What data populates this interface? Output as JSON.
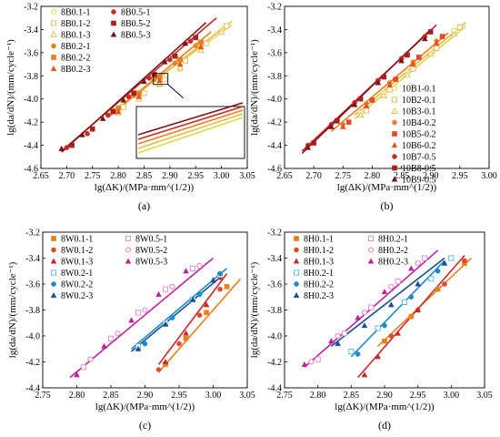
{
  "chart_data": [
    {
      "type": "scatter",
      "panel_label": "(a)",
      "xlabel": "lg(ΔK)/(MPa·mm^(1/2))",
      "ylabel": "lg(da/dN)/(mm/cycle⁻¹)",
      "xlim": [
        2.65,
        3.05
      ],
      "ylim": [
        -4.6,
        -3.2
      ],
      "xticks": [
        "2.65",
        "2.70",
        "2.75",
        "2.80",
        "2.85",
        "2.90",
        "2.95",
        "3.00",
        "3.05"
      ],
      "yticks": [
        "-3.2",
        "-3.4",
        "-3.6",
        "-3.8",
        "-4.0",
        "-4.2",
        "-4.4",
        "-4.6"
      ],
      "legend_columns": 2,
      "series": [
        {
          "name": "8B0.1-1",
          "color": "#d9d94a",
          "marker": "circle",
          "fill": "open",
          "x": [
            2.8,
            2.84,
            2.88,
            2.92,
            2.96,
            3.0
          ],
          "y": [
            -4.09,
            -3.99,
            -3.88,
            -3.74,
            -3.56,
            -3.4
          ]
        },
        {
          "name": "8B0.1-2",
          "color": "#e6b84a",
          "marker": "square",
          "fill": "open",
          "x": [
            2.81,
            2.85,
            2.89,
            2.93,
            2.97,
            3.01
          ],
          "y": [
            -4.07,
            -3.95,
            -3.83,
            -3.67,
            -3.52,
            -3.37
          ]
        },
        {
          "name": "8B0.1-3",
          "color": "#e6b84a",
          "marker": "triangle",
          "fill": "open",
          "x": [
            2.8,
            2.84,
            2.88,
            2.92,
            2.96,
            3.0
          ],
          "y": [
            -4.12,
            -4.0,
            -3.87,
            -3.73,
            -3.58,
            -3.42
          ]
        },
        {
          "name": "8B0.2-1",
          "color": "#e8801f",
          "marker": "circle",
          "fill": "solid",
          "x": [
            2.79,
            2.83,
            2.87,
            2.91,
            2.95
          ],
          "y": [
            -4.1,
            -3.97,
            -3.83,
            -3.69,
            -3.54
          ]
        },
        {
          "name": "8B0.2-2",
          "color": "#e8801f",
          "marker": "square",
          "fill": "solid",
          "x": [
            2.8,
            2.84,
            2.88,
            2.92,
            2.96
          ],
          "y": [
            -4.08,
            -3.95,
            -3.81,
            -3.66,
            -3.51
          ]
        },
        {
          "name": "8B0.2-3",
          "color": "#e8501f",
          "marker": "triangle",
          "fill": "solid",
          "x": [
            2.8,
            2.84,
            2.88,
            2.92,
            2.96
          ],
          "y": [
            -4.11,
            -3.98,
            -3.84,
            -3.7,
            -3.55
          ]
        },
        {
          "name": "8B0.5-1",
          "color": "#c8282a",
          "marker": "circle",
          "fill": "solid",
          "x": [
            2.7,
            2.74,
            2.78,
            2.82,
            2.86,
            2.9,
            2.94
          ],
          "y": [
            -4.42,
            -4.3,
            -4.14,
            -3.98,
            -3.82,
            -3.66,
            -3.5
          ]
        },
        {
          "name": "8B0.5-2",
          "color": "#a81e22",
          "marker": "square",
          "fill": "solid",
          "x": [
            2.71,
            2.75,
            2.79,
            2.83,
            2.87,
            2.91,
            2.95
          ],
          "y": [
            -4.4,
            -4.26,
            -4.11,
            -3.95,
            -3.79,
            -3.63,
            -3.47
          ]
        },
        {
          "name": "8B0.5-3",
          "color": "#7a1216",
          "marker": "triangle",
          "fill": "solid",
          "x": [
            2.69,
            2.73,
            2.77,
            2.81,
            2.85,
            2.89,
            2.93
          ],
          "y": [
            -4.43,
            -4.31,
            -4.17,
            -4.01,
            -3.85,
            -3.68,
            -3.52
          ]
        }
      ],
      "fit_lines": [
        {
          "color": "#d9d94a",
          "x": [
            2.78,
            3.02
          ],
          "y": [
            -4.13,
            -3.36
          ]
        },
        {
          "color": "#e6b84a",
          "x": [
            2.78,
            3.02
          ],
          "y": [
            -4.15,
            -3.33
          ]
        },
        {
          "color": "#e8801f",
          "x": [
            2.78,
            2.98
          ],
          "y": [
            -4.16,
            -3.42
          ]
        },
        {
          "color": "#c8282a",
          "x": [
            2.69,
            2.99
          ],
          "y": [
            -4.45,
            -3.3
          ]
        },
        {
          "color": "#7a1216",
          "x": [
            2.69,
            2.97
          ],
          "y": [
            -4.46,
            -3.34
          ]
        }
      ],
      "inset": true
    },
    {
      "type": "scatter",
      "panel_label": "(b)",
      "xlabel": "lg(ΔK)/(MPa·mm^(1/2))",
      "ylabel": "lg(da/dN)/(mm/cycle⁻¹)",
      "xlim": [
        2.65,
        3.0
      ],
      "ylim": [
        -4.6,
        -3.2
      ],
      "xticks": [
        "2.65",
        "2.70",
        "2.75",
        "2.80",
        "2.85",
        "2.90",
        "2.95",
        "3.00"
      ],
      "yticks": [
        "-3.2",
        "-3.4",
        "-3.6",
        "-3.8",
        "-4.0",
        "-4.2",
        "-4.4",
        "-4.6"
      ],
      "legend_columns": 1,
      "series": [
        {
          "name": "10B1-0.1",
          "color": "#d9d94a",
          "marker": "circle",
          "fill": "open",
          "x": [
            2.78,
            2.82,
            2.86,
            2.9,
            2.94
          ],
          "y": [
            -4.12,
            -3.95,
            -3.77,
            -3.59,
            -3.41
          ]
        },
        {
          "name": "10B2-0.1",
          "color": "#e6b84a",
          "marker": "square",
          "fill": "open",
          "x": [
            2.79,
            2.83,
            2.87,
            2.91,
            2.95
          ],
          "y": [
            -4.1,
            -3.92,
            -3.74,
            -3.56,
            -3.38
          ]
        },
        {
          "name": "10B3-0.1",
          "color": "#e6b84a",
          "marker": "triangle",
          "fill": "open",
          "x": [
            2.78,
            2.82,
            2.86,
            2.9,
            2.94
          ],
          "y": [
            -4.14,
            -3.97,
            -3.79,
            -3.61,
            -3.44
          ]
        },
        {
          "name": "10B4-0.2",
          "color": "#e8801f",
          "marker": "circle",
          "fill": "solid",
          "x": [
            2.75,
            2.79,
            2.83,
            2.87,
            2.91
          ],
          "y": [
            -4.22,
            -4.04,
            -3.86,
            -3.68,
            -3.5
          ]
        },
        {
          "name": "10B5-0.2",
          "color": "#e04a2a",
          "marker": "square",
          "fill": "solid",
          "x": [
            2.76,
            2.8,
            2.84,
            2.88,
            2.92
          ],
          "y": [
            -4.2,
            -4.01,
            -3.83,
            -3.64,
            -3.46
          ]
        },
        {
          "name": "10B6-0.2",
          "color": "#e8501f",
          "marker": "triangle",
          "fill": "solid",
          "x": [
            2.75,
            2.79,
            2.83,
            2.87,
            2.91
          ],
          "y": [
            -4.24,
            -4.06,
            -3.88,
            -3.7,
            -3.52
          ]
        },
        {
          "name": "10B7-0.5",
          "color": "#c8282a",
          "marker": "circle",
          "fill": "solid",
          "x": [
            2.69,
            2.73,
            2.77,
            2.81,
            2.85,
            2.89
          ],
          "y": [
            -4.4,
            -4.22,
            -4.03,
            -3.84,
            -3.65,
            -3.46
          ]
        },
        {
          "name": "10B8-0.5",
          "color": "#a81e22",
          "marker": "square",
          "fill": "solid",
          "x": [
            2.7,
            2.74,
            2.78,
            2.82,
            2.86,
            2.9
          ],
          "y": [
            -4.38,
            -4.19,
            -4.0,
            -3.81,
            -3.62,
            -3.42
          ]
        },
        {
          "name": "10B9-0.5",
          "color": "#7a1216",
          "marker": "triangle",
          "fill": "solid",
          "x": [
            2.69,
            2.73,
            2.77,
            2.81,
            2.85,
            2.89
          ],
          "y": [
            -4.42,
            -4.24,
            -4.05,
            -3.86,
            -3.67,
            -3.48
          ]
        }
      ],
      "fit_lines": [
        {
          "color": "#d9d94a",
          "x": [
            2.77,
            2.96
          ],
          "y": [
            -4.17,
            -3.37
          ]
        },
        {
          "color": "#e6b84a",
          "x": [
            2.77,
            2.96
          ],
          "y": [
            -4.14,
            -3.34
          ]
        },
        {
          "color": "#e8801f",
          "x": [
            2.73,
            2.93
          ],
          "y": [
            -4.28,
            -3.43
          ]
        },
        {
          "color": "#c8282a",
          "x": [
            2.68,
            2.91
          ],
          "y": [
            -4.45,
            -3.36
          ]
        },
        {
          "color": "#7a1216",
          "x": [
            2.68,
            2.9
          ],
          "y": [
            -4.47,
            -3.4
          ]
        }
      ]
    },
    {
      "type": "scatter",
      "panel_label": "(c)",
      "xlabel": "lg(ΔK)/(MPa·mm^(1/2))",
      "ylabel": "lg(da/dN)/(mm/cycle⁻¹)",
      "xlim": [
        2.75,
        3.05
      ],
      "ylim": [
        -4.4,
        -3.2
      ],
      "xticks": [
        "2.75",
        "2.80",
        "2.85",
        "2.90",
        "2.95",
        "3.00",
        "3.05"
      ],
      "yticks": [
        "-3.2",
        "-3.4",
        "-3.6",
        "-3.8",
        "-4.0",
        "-4.2",
        "-4.4"
      ],
      "legend_columns": 2,
      "series": [
        {
          "name": "8W0.1-1",
          "color": "#e8801f",
          "marker": "square",
          "fill": "solid",
          "x": [
            2.93,
            2.96,
            2.99,
            3.02
          ],
          "y": [
            -4.22,
            -4.02,
            -3.82,
            -3.62
          ]
        },
        {
          "name": "8W0.1-2",
          "color": "#e04a2a",
          "marker": "circle",
          "fill": "solid",
          "x": [
            2.92,
            2.95,
            2.98,
            3.01
          ],
          "y": [
            -4.26,
            -4.06,
            -3.84,
            -3.64
          ]
        },
        {
          "name": "8W0.1-3",
          "color": "#c8282a",
          "marker": "triangle",
          "fill": "solid",
          "x": [
            2.93,
            2.96,
            2.99,
            3.01
          ],
          "y": [
            -4.2,
            -3.98,
            -3.76,
            -3.55
          ]
        },
        {
          "name": "8W0.2-1",
          "color": "#5ab4e0",
          "marker": "square",
          "fill": "open",
          "x": [
            2.89,
            2.93,
            2.97,
            3.01
          ],
          "y": [
            -4.08,
            -3.9,
            -3.72,
            -3.53
          ]
        },
        {
          "name": "8W0.2-2",
          "color": "#1f8ac8",
          "marker": "circle",
          "fill": "solid",
          "x": [
            2.9,
            2.94,
            2.98,
            3.01
          ],
          "y": [
            -4.06,
            -3.86,
            -3.68,
            -3.52
          ]
        },
        {
          "name": "8W0.2-3",
          "color": "#1a4f90",
          "marker": "triangle",
          "fill": "solid",
          "x": [
            2.89,
            2.93,
            2.97,
            3.0
          ],
          "y": [
            -4.1,
            -3.91,
            -3.72,
            -3.57
          ]
        },
        {
          "name": "8W0.5-1",
          "color": "#d88ac8",
          "marker": "square",
          "fill": "open",
          "x": [
            2.81,
            2.85,
            2.89,
            2.93,
            2.97
          ],
          "y": [
            -4.24,
            -4.02,
            -3.82,
            -3.64,
            -3.48
          ]
        },
        {
          "name": "8W0.5-2",
          "color": "#e070c8",
          "marker": "circle",
          "fill": "open",
          "x": [
            2.82,
            2.86,
            2.9,
            2.94,
            2.98
          ],
          "y": [
            -4.18,
            -3.98,
            -3.8,
            -3.62,
            -3.46
          ]
        },
        {
          "name": "8W0.5-3",
          "color": "#c0209a",
          "marker": "triangle",
          "fill": "solid",
          "x": [
            2.8,
            2.84,
            2.88,
            2.92,
            2.96
          ],
          "y": [
            -4.3,
            -4.08,
            -3.88,
            -3.68,
            -3.5
          ]
        }
      ],
      "fit_lines": [
        {
          "color": "#e8801f",
          "x": [
            2.92,
            3.04
          ],
          "y": [
            -4.28,
            -3.56
          ]
        },
        {
          "color": "#c8282a",
          "x": [
            2.92,
            3.02
          ],
          "y": [
            -4.22,
            -3.52
          ]
        },
        {
          "color": "#1f8ac8",
          "x": [
            2.88,
            3.02
          ],
          "y": [
            -4.1,
            -3.48
          ]
        },
        {
          "color": "#1a4f90",
          "x": [
            2.88,
            3.01
          ],
          "y": [
            -4.12,
            -3.55
          ]
        },
        {
          "color": "#c0209a",
          "x": [
            2.79,
            3.0
          ],
          "y": [
            -4.32,
            -3.4
          ]
        }
      ]
    },
    {
      "type": "scatter",
      "panel_label": "(d)",
      "xlabel": "lg(ΔK)/(MPa·mm^(1/2))",
      "ylabel": "lg(da/dN)/(mm/cycle⁻¹)",
      "xlim": [
        2.75,
        3.05
      ],
      "ylim": [
        -4.4,
        -3.2
      ],
      "xticks": [
        "2.75",
        "2.80",
        "2.85",
        "2.90",
        "2.95",
        "3.00",
        "3.05"
      ],
      "yticks": [
        "-3.2",
        "-3.4",
        "-3.6",
        "-3.8",
        "-4.0",
        "-4.2",
        "-4.4"
      ],
      "legend_columns": 2,
      "series": [
        {
          "name": "8H0.1-1",
          "color": "#e8801f",
          "marker": "square",
          "fill": "solid",
          "x": [
            2.9,
            2.94,
            2.98,
            3.02
          ],
          "y": [
            -4.04,
            -3.85,
            -3.64,
            -3.44
          ]
        },
        {
          "name": "8H0.1-2",
          "color": "#e04a2a",
          "marker": "circle",
          "fill": "solid",
          "x": [
            2.91,
            2.95,
            2.99,
            3.02
          ],
          "y": [
            -4.0,
            -3.8,
            -3.6,
            -3.42
          ]
        },
        {
          "name": "8H0.1-3",
          "color": "#c8282a",
          "marker": "triangle",
          "fill": "solid",
          "x": [
            2.87,
            2.89,
            2.92,
            2.95
          ],
          "y": [
            -4.3,
            -4.16,
            -3.98,
            -3.8
          ]
        },
        {
          "name": "8H0.2-1",
          "color": "#5ab4e0",
          "marker": "square",
          "fill": "open",
          "x": [
            2.85,
            2.89,
            2.93,
            2.97,
            3.0
          ],
          "y": [
            -4.12,
            -3.94,
            -3.74,
            -3.56,
            -3.4
          ]
        },
        {
          "name": "8H0.2-2",
          "color": "#1f8ac8",
          "marker": "circle",
          "fill": "solid",
          "x": [
            2.86,
            2.9,
            2.94,
            2.98
          ],
          "y": [
            -4.14,
            -3.92,
            -3.7,
            -3.5
          ]
        },
        {
          "name": "8H0.2-3",
          "color": "#1a4f90",
          "marker": "triangle",
          "fill": "solid",
          "x": [
            2.83,
            2.87,
            2.91,
            2.95,
            2.99
          ],
          "y": [
            -4.06,
            -3.92,
            -3.76,
            -3.6,
            -3.44
          ]
        },
        {
          "name": "8H0.2-1",
          "color": "#d88ac8",
          "marker": "square",
          "fill": "open",
          "x": [
            2.8,
            2.84,
            2.88,
            2.92,
            2.96
          ],
          "y": [
            -4.18,
            -3.98,
            -3.78,
            -3.58,
            -3.4
          ]
        },
        {
          "name": "8H0.2-2",
          "color": "#e070c8",
          "marker": "circle",
          "fill": "open",
          "x": [
            2.79,
            2.83,
            2.87,
            2.91,
            2.95
          ],
          "y": [
            -4.2,
            -4.0,
            -3.82,
            -3.62,
            -3.44
          ]
        },
        {
          "name": "8H0.2-3",
          "color": "#c0209a",
          "marker": "triangle",
          "fill": "solid",
          "x": [
            2.78,
            2.82,
            2.86,
            2.9,
            2.94
          ],
          "y": [
            -4.22,
            -4.04,
            -3.86,
            -3.66,
            -3.48
          ]
        }
      ],
      "fit_lines": [
        {
          "color": "#e8801f",
          "x": [
            2.89,
            3.03
          ],
          "y": [
            -4.08,
            -3.4
          ]
        },
        {
          "color": "#c8282a",
          "x": [
            2.86,
            3.02
          ],
          "y": [
            -4.32,
            -3.38
          ]
        },
        {
          "color": "#1f8ac8",
          "x": [
            2.85,
            2.99
          ],
          "y": [
            -4.16,
            -3.42
          ]
        },
        {
          "color": "#1a4f90",
          "x": [
            2.82,
            2.99
          ],
          "y": [
            -4.08,
            -3.4
          ]
        },
        {
          "color": "#c0209a",
          "x": [
            2.78,
            2.98
          ],
          "y": [
            -4.24,
            -3.34
          ]
        }
      ]
    }
  ]
}
